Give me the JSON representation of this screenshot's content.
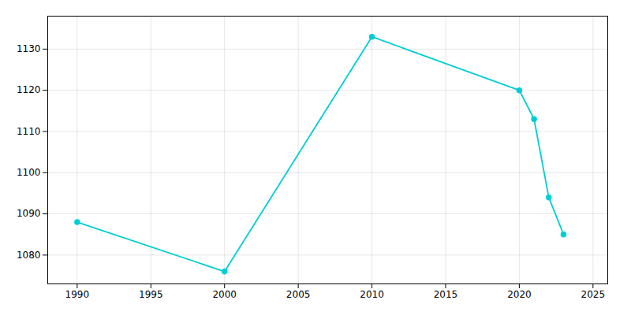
{
  "chart_data": {
    "type": "line",
    "x": [
      1990,
      2000,
      2010,
      2020,
      2021,
      2022,
      2023
    ],
    "values": [
      1088,
      1076,
      1133,
      1120,
      1113,
      1094,
      1085
    ],
    "color": "#00CED1",
    "marker": "circle",
    "xlim": [
      1988,
      2026
    ],
    "ylim": [
      1073,
      1138
    ],
    "xticks": [
      1990,
      1995,
      2000,
      2005,
      2010,
      2015,
      2020,
      2025
    ],
    "yticks": [
      1080,
      1090,
      1100,
      1110,
      1120,
      1130
    ],
    "grid": true
  }
}
